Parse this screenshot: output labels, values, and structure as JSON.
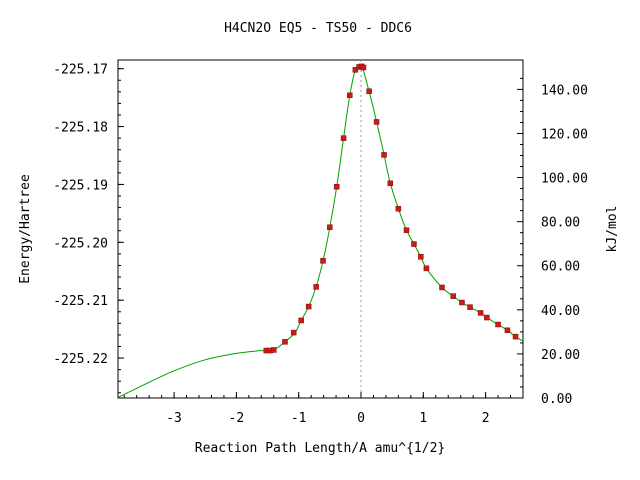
{
  "chart_data": {
    "type": "scatter",
    "title": "H4CN2O   EQ5 - TS50 - DDC6",
    "xlabel": "Reaction Path Length/A amu^{1/2}",
    "ylabel": "Energy/Hartree",
    "y2label": "kJ/mol",
    "xlim": [
      -3.9,
      2.6
    ],
    "ylim": [
      -225.2269,
      -225.1685
    ],
    "x_ticks": [
      -3,
      -2,
      -1,
      0,
      1,
      2
    ],
    "x_tick_labels": [
      "-3",
      "-2",
      "-1",
      "0",
      "1",
      "2"
    ],
    "y_ticks": [
      -225.17,
      -225.18,
      -225.19,
      -225.2,
      -225.21,
      -225.22
    ],
    "y_tick_labels": [
      "-225.17",
      "-225.18",
      "-225.19",
      "-225.20",
      "-225.21",
      "-225.22"
    ],
    "y2_ticks": [
      0,
      20,
      40,
      60,
      80,
      100,
      120,
      140
    ],
    "y2_tick_labels": [
      "0.00",
      "20.00",
      "40.00",
      "60.00",
      "80.00",
      "100.00",
      "120.00",
      "140.00"
    ],
    "y2_zero_hartree": -225.2269,
    "y2_hartree_per_unit": 0.00038088,
    "reference_line_x": 0,
    "series": [
      {
        "kind": "curve",
        "color": "#00a000",
        "points": [
          [
            -3.9,
            -225.2268
          ],
          [
            -3.5,
            -225.2247
          ],
          [
            -3.0,
            -225.2222
          ],
          [
            -2.5,
            -225.2203
          ],
          [
            -2.0,
            -225.2192
          ],
          [
            -1.7,
            -225.2188
          ],
          [
            -1.52,
            -225.2187
          ],
          [
            -1.4,
            -225.2186
          ],
          [
            -1.22,
            -225.2172
          ],
          [
            -1.06,
            -225.2156
          ],
          [
            -0.96,
            -225.2135
          ],
          [
            -0.84,
            -225.2111
          ],
          [
            -0.72,
            -225.2077
          ],
          [
            -0.61,
            -225.2032
          ],
          [
            -0.5,
            -225.1974
          ],
          [
            -0.39,
            -225.1904
          ],
          [
            -0.28,
            -225.182
          ],
          [
            -0.18,
            -225.1746
          ],
          [
            -0.09,
            -225.1702
          ],
          [
            -0.02,
            -225.1697
          ],
          [
            0.02,
            -225.1697
          ],
          [
            0.13,
            -225.1739
          ],
          [
            0.25,
            -225.1792
          ],
          [
            0.37,
            -225.1849
          ],
          [
            0.47,
            -225.1898
          ],
          [
            0.6,
            -225.1942
          ],
          [
            0.73,
            -225.1979
          ],
          [
            0.85,
            -225.2003
          ],
          [
            0.96,
            -225.2025
          ],
          [
            1.05,
            -225.2045
          ],
          [
            1.3,
            -225.2078
          ],
          [
            1.48,
            -225.2093
          ],
          [
            1.62,
            -225.2104
          ],
          [
            1.75,
            -225.2112
          ],
          [
            1.92,
            -225.2122
          ],
          [
            2.02,
            -225.213
          ],
          [
            2.2,
            -225.2142
          ],
          [
            2.35,
            -225.2152
          ],
          [
            2.48,
            -225.2163
          ],
          [
            2.6,
            -225.2171
          ]
        ]
      },
      {
        "kind": "markers",
        "color": "#d01818",
        "points": [
          [
            -1.52,
            -225.2187
          ],
          [
            -1.46,
            -225.2187
          ],
          [
            -1.4,
            -225.2186
          ],
          [
            -1.22,
            -225.2172
          ],
          [
            -1.08,
            -225.2156
          ],
          [
            -0.96,
            -225.2135
          ],
          [
            -0.84,
            -225.2111
          ],
          [
            -0.72,
            -225.2077
          ],
          [
            -0.61,
            -225.2032
          ],
          [
            -0.5,
            -225.1974
          ],
          [
            -0.39,
            -225.1904
          ],
          [
            -0.28,
            -225.182
          ],
          [
            -0.18,
            -225.1746
          ],
          [
            -0.09,
            -225.1702
          ],
          [
            -0.03,
            -225.1697
          ],
          [
            0.01,
            -225.1696
          ],
          [
            0.04,
            -225.1698
          ],
          [
            0.13,
            -225.1739
          ],
          [
            0.25,
            -225.1792
          ],
          [
            0.37,
            -225.1849
          ],
          [
            0.47,
            -225.1898
          ],
          [
            0.6,
            -225.1942
          ],
          [
            0.73,
            -225.1979
          ],
          [
            0.85,
            -225.2003
          ],
          [
            0.96,
            -225.2025
          ],
          [
            1.05,
            -225.2045
          ],
          [
            1.3,
            -225.2078
          ],
          [
            1.48,
            -225.2093
          ],
          [
            1.62,
            -225.2104
          ],
          [
            1.75,
            -225.2112
          ],
          [
            1.92,
            -225.2122
          ],
          [
            2.02,
            -225.213
          ],
          [
            2.2,
            -225.2142
          ],
          [
            2.35,
            -225.2152
          ],
          [
            2.48,
            -225.2163
          ]
        ]
      }
    ]
  }
}
